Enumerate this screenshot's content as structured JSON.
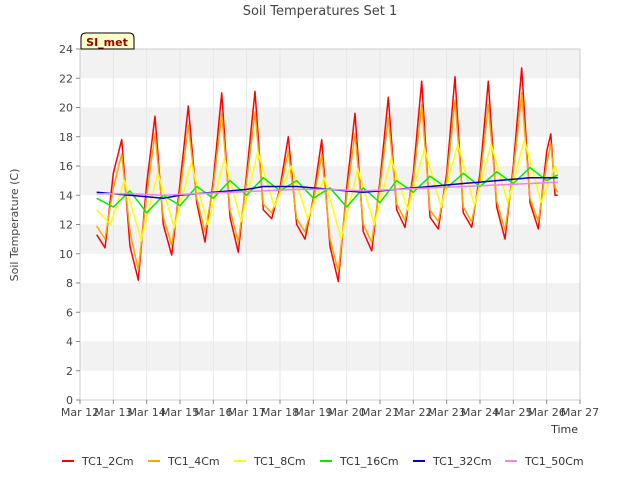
{
  "chart_data": {
    "type": "line",
    "title": "Soil Temperatures Set 1",
    "xlabel": "Time",
    "ylabel": "Soil Temperature (C)",
    "badge": "SI_met",
    "xlim": [
      "2024-03-12",
      "2024-03-27"
    ],
    "ylim": [
      0,
      24
    ],
    "x_ticks": [
      {
        "date": "2024-03-12",
        "label": "Mar 12"
      },
      {
        "date": "2024-03-13",
        "label": "Mar 13"
      },
      {
        "date": "2024-03-14",
        "label": "Mar 14"
      },
      {
        "date": "2024-03-15",
        "label": "Mar 15"
      },
      {
        "date": "2024-03-16",
        "label": "Mar 16"
      },
      {
        "date": "2024-03-17",
        "label": "Mar 17"
      },
      {
        "date": "2024-03-18",
        "label": "Mar 18"
      },
      {
        "date": "2024-03-19",
        "label": "Mar 19"
      },
      {
        "date": "2024-03-20",
        "label": "Mar 20"
      },
      {
        "date": "2024-03-21",
        "label": "Mar 21"
      },
      {
        "date": "2024-03-22",
        "label": "Mar 22"
      },
      {
        "date": "2024-03-23",
        "label": "Mar 23"
      },
      {
        "date": "2024-03-24",
        "label": "Mar 24"
      },
      {
        "date": "2024-03-25",
        "label": "Mar 25"
      },
      {
        "date": "2024-03-26",
        "label": "Mar 26"
      },
      {
        "date": "2024-03-27",
        "label": "Mar 27"
      }
    ],
    "y_ticks": [
      0,
      2,
      4,
      6,
      8,
      10,
      12,
      14,
      16,
      18,
      20,
      22,
      24
    ],
    "grid": "horizontal alternating bands",
    "legend_position": "bottom",
    "series": [
      {
        "name": "TC1_2Cm",
        "color": "#ff0000",
        "points": [
          [
            "2024-03-12 12:00",
            11.3
          ],
          [
            "2024-03-12 18:00",
            10.4
          ],
          [
            "2024-03-13 00:00",
            15.5
          ],
          [
            "2024-03-13 06:00",
            17.8
          ],
          [
            "2024-03-13 12:00",
            10.5
          ],
          [
            "2024-03-13 18:00",
            8.2
          ],
          [
            "2024-03-14 00:00",
            14.8
          ],
          [
            "2024-03-14 06:00",
            19.4
          ],
          [
            "2024-03-14 12:00",
            12.0
          ],
          [
            "2024-03-14 18:00",
            9.9
          ],
          [
            "2024-03-15 00:00",
            14.8
          ],
          [
            "2024-03-15 06:00",
            20.1
          ],
          [
            "2024-03-15 12:00",
            13.5
          ],
          [
            "2024-03-15 18:00",
            10.8
          ],
          [
            "2024-03-16 00:00",
            15.0
          ],
          [
            "2024-03-16 06:00",
            21.0
          ],
          [
            "2024-03-16 12:00",
            12.5
          ],
          [
            "2024-03-16 18:00",
            10.1
          ],
          [
            "2024-03-17 00:00",
            15.5
          ],
          [
            "2024-03-17 06:00",
            21.1
          ],
          [
            "2024-03-17 12:00",
            13.0
          ],
          [
            "2024-03-17 18:00",
            12.4
          ],
          [
            "2024-03-18 00:00",
            14.5
          ],
          [
            "2024-03-18 06:00",
            18.0
          ],
          [
            "2024-03-18 12:00",
            12.0
          ],
          [
            "2024-03-18 18:00",
            11.0
          ],
          [
            "2024-03-19 00:00",
            13.8
          ],
          [
            "2024-03-19 06:00",
            17.8
          ],
          [
            "2024-03-19 12:00",
            10.5
          ],
          [
            "2024-03-19 18:00",
            8.1
          ],
          [
            "2024-03-20 00:00",
            14.5
          ],
          [
            "2024-03-20 06:00",
            19.6
          ],
          [
            "2024-03-20 12:00",
            11.5
          ],
          [
            "2024-03-20 18:00",
            10.2
          ],
          [
            "2024-03-21 00:00",
            15.0
          ],
          [
            "2024-03-21 06:00",
            20.7
          ],
          [
            "2024-03-21 12:00",
            13.0
          ],
          [
            "2024-03-21 18:00",
            11.8
          ],
          [
            "2024-03-22 00:00",
            15.5
          ],
          [
            "2024-03-22 06:00",
            21.8
          ],
          [
            "2024-03-22 12:00",
            12.5
          ],
          [
            "2024-03-22 18:00",
            11.7
          ],
          [
            "2024-03-23 00:00",
            15.5
          ],
          [
            "2024-03-23 06:00",
            22.1
          ],
          [
            "2024-03-23 12:00",
            12.8
          ],
          [
            "2024-03-23 18:00",
            11.8
          ],
          [
            "2024-03-24 00:00",
            15.5
          ],
          [
            "2024-03-24 06:00",
            21.8
          ],
          [
            "2024-03-24 12:00",
            13.2
          ],
          [
            "2024-03-24 18:00",
            11.0
          ],
          [
            "2024-03-25 00:00",
            16.0
          ],
          [
            "2024-03-25 06:00",
            22.7
          ],
          [
            "2024-03-25 12:00",
            13.5
          ],
          [
            "2024-03-25 18:00",
            11.7
          ],
          [
            "2024-03-26 00:00",
            17.0
          ],
          [
            "2024-03-26 03:00",
            18.2
          ],
          [
            "2024-03-26 06:00",
            14.0
          ],
          [
            "2024-03-26 08:00",
            14.0
          ]
        ]
      },
      {
        "name": "TC1_4Cm",
        "color": "#ffa500",
        "points": [
          [
            "2024-03-12 12:00",
            11.9
          ],
          [
            "2024-03-12 18:00",
            11.0
          ],
          [
            "2024-03-13 00:00",
            14.5
          ],
          [
            "2024-03-13 06:00",
            16.8
          ],
          [
            "2024-03-13 12:00",
            11.5
          ],
          [
            "2024-03-13 18:00",
            8.9
          ],
          [
            "2024-03-14 00:00",
            14.0
          ],
          [
            "2024-03-14 06:00",
            18.2
          ],
          [
            "2024-03-14 12:00",
            12.5
          ],
          [
            "2024-03-14 18:00",
            10.6
          ],
          [
            "2024-03-15 00:00",
            14.2
          ],
          [
            "2024-03-15 06:00",
            18.8
          ],
          [
            "2024-03-15 12:00",
            13.8
          ],
          [
            "2024-03-15 18:00",
            11.5
          ],
          [
            "2024-03-16 00:00",
            14.6
          ],
          [
            "2024-03-16 06:00",
            19.6
          ],
          [
            "2024-03-16 12:00",
            13.0
          ],
          [
            "2024-03-16 18:00",
            10.8
          ],
          [
            "2024-03-17 00:00",
            15.0
          ],
          [
            "2024-03-17 06:00",
            19.7
          ],
          [
            "2024-03-17 12:00",
            13.4
          ],
          [
            "2024-03-17 18:00",
            12.8
          ],
          [
            "2024-03-18 00:00",
            14.3
          ],
          [
            "2024-03-18 06:00",
            17.0
          ],
          [
            "2024-03-18 12:00",
            12.4
          ],
          [
            "2024-03-18 18:00",
            11.5
          ],
          [
            "2024-03-19 00:00",
            13.6
          ],
          [
            "2024-03-19 06:00",
            16.8
          ],
          [
            "2024-03-19 12:00",
            11.0
          ],
          [
            "2024-03-19 18:00",
            8.8
          ],
          [
            "2024-03-20 00:00",
            14.0
          ],
          [
            "2024-03-20 06:00",
            18.2
          ],
          [
            "2024-03-20 12:00",
            12.0
          ],
          [
            "2024-03-20 18:00",
            10.8
          ],
          [
            "2024-03-21 00:00",
            14.6
          ],
          [
            "2024-03-21 06:00",
            19.3
          ],
          [
            "2024-03-21 12:00",
            13.4
          ],
          [
            "2024-03-21 18:00",
            12.3
          ],
          [
            "2024-03-22 00:00",
            15.0
          ],
          [
            "2024-03-22 06:00",
            20.2
          ],
          [
            "2024-03-22 12:00",
            13.0
          ],
          [
            "2024-03-22 18:00",
            12.2
          ],
          [
            "2024-03-23 00:00",
            15.0
          ],
          [
            "2024-03-23 06:00",
            20.5
          ],
          [
            "2024-03-23 12:00",
            13.2
          ],
          [
            "2024-03-23 18:00",
            12.2
          ],
          [
            "2024-03-24 00:00",
            15.0
          ],
          [
            "2024-03-24 06:00",
            20.2
          ],
          [
            "2024-03-24 12:00",
            13.6
          ],
          [
            "2024-03-24 18:00",
            11.6
          ],
          [
            "2024-03-25 00:00",
            15.6
          ],
          [
            "2024-03-25 06:00",
            21.0
          ],
          [
            "2024-03-25 12:00",
            13.8
          ],
          [
            "2024-03-25 18:00",
            12.2
          ],
          [
            "2024-03-26 00:00",
            16.2
          ],
          [
            "2024-03-26 03:00",
            17.5
          ],
          [
            "2024-03-26 06:00",
            14.5
          ],
          [
            "2024-03-26 08:00",
            14.2
          ]
        ]
      },
      {
        "name": "TC1_8Cm",
        "color": "#ffff00",
        "points": [
          [
            "2024-03-12 12:00",
            13.0
          ],
          [
            "2024-03-12 22:00",
            12.0
          ],
          [
            "2024-03-13 08:00",
            15.0
          ],
          [
            "2024-03-13 20:00",
            10.9
          ],
          [
            "2024-03-14 08:00",
            15.5
          ],
          [
            "2024-03-14 20:00",
            11.8
          ],
          [
            "2024-03-15 08:00",
            16.2
          ],
          [
            "2024-03-15 20:00",
            12.0
          ],
          [
            "2024-03-16 08:00",
            16.5
          ],
          [
            "2024-03-16 20:00",
            12.2
          ],
          [
            "2024-03-17 08:00",
            17.0
          ],
          [
            "2024-03-17 20:00",
            13.2
          ],
          [
            "2024-03-18 08:00",
            16.0
          ],
          [
            "2024-03-18 20:00",
            12.4
          ],
          [
            "2024-03-19 08:00",
            15.2
          ],
          [
            "2024-03-19 20:00",
            11.0
          ],
          [
            "2024-03-20 08:00",
            15.8
          ],
          [
            "2024-03-20 20:00",
            12.0
          ],
          [
            "2024-03-21 08:00",
            16.5
          ],
          [
            "2024-03-21 20:00",
            13.0
          ],
          [
            "2024-03-22 08:00",
            17.2
          ],
          [
            "2024-03-22 20:00",
            13.2
          ],
          [
            "2024-03-23 08:00",
            17.5
          ],
          [
            "2024-03-23 20:00",
            13.3
          ],
          [
            "2024-03-24 08:00",
            17.5
          ],
          [
            "2024-03-24 20:00",
            13.5
          ],
          [
            "2024-03-25 08:00",
            17.8
          ],
          [
            "2024-03-25 20:00",
            13.5
          ],
          [
            "2024-03-26 06:00",
            16.0
          ],
          [
            "2024-03-26 08:00",
            15.5
          ]
        ]
      },
      {
        "name": "TC1_16Cm",
        "color": "#00ee00",
        "points": [
          [
            "2024-03-12 12:00",
            13.8
          ],
          [
            "2024-03-13 00:00",
            13.2
          ],
          [
            "2024-03-13 12:00",
            14.3
          ],
          [
            "2024-03-14 00:00",
            12.8
          ],
          [
            "2024-03-14 12:00",
            14.0
          ],
          [
            "2024-03-15 00:00",
            13.3
          ],
          [
            "2024-03-15 12:00",
            14.6
          ],
          [
            "2024-03-16 00:00",
            13.8
          ],
          [
            "2024-03-16 12:00",
            15.0
          ],
          [
            "2024-03-17 00:00",
            14.0
          ],
          [
            "2024-03-17 12:00",
            15.2
          ],
          [
            "2024-03-18 00:00",
            14.3
          ],
          [
            "2024-03-18 12:00",
            15.0
          ],
          [
            "2024-03-19 00:00",
            13.8
          ],
          [
            "2024-03-19 12:00",
            14.5
          ],
          [
            "2024-03-20 00:00",
            13.2
          ],
          [
            "2024-03-20 12:00",
            14.5
          ],
          [
            "2024-03-21 00:00",
            13.5
          ],
          [
            "2024-03-21 12:00",
            15.0
          ],
          [
            "2024-03-22 00:00",
            14.2
          ],
          [
            "2024-03-22 12:00",
            15.3
          ],
          [
            "2024-03-23 00:00",
            14.5
          ],
          [
            "2024-03-23 12:00",
            15.5
          ],
          [
            "2024-03-24 00:00",
            14.6
          ],
          [
            "2024-03-24 12:00",
            15.6
          ],
          [
            "2024-03-25 00:00",
            14.8
          ],
          [
            "2024-03-25 12:00",
            15.9
          ],
          [
            "2024-03-26 00:00",
            15.0
          ],
          [
            "2024-03-26 08:00",
            15.4
          ]
        ]
      },
      {
        "name": "TC1_32Cm",
        "color": "#0000cc",
        "points": [
          [
            "2024-03-12 12:00",
            14.2
          ],
          [
            "2024-03-13 00:00",
            14.1
          ],
          [
            "2024-03-13 12:00",
            14.0
          ],
          [
            "2024-03-14 00:00",
            13.9
          ],
          [
            "2024-03-14 12:00",
            13.8
          ],
          [
            "2024-03-15 00:00",
            14.0
          ],
          [
            "2024-03-15 12:00",
            14.1
          ],
          [
            "2024-03-16 00:00",
            14.2
          ],
          [
            "2024-03-16 12:00",
            14.3
          ],
          [
            "2024-03-17 00:00",
            14.4
          ],
          [
            "2024-03-17 12:00",
            14.6
          ],
          [
            "2024-03-18 00:00",
            14.6
          ],
          [
            "2024-03-18 12:00",
            14.6
          ],
          [
            "2024-03-19 00:00",
            14.5
          ],
          [
            "2024-03-19 12:00",
            14.4
          ],
          [
            "2024-03-20 00:00",
            14.3
          ],
          [
            "2024-03-20 12:00",
            14.2
          ],
          [
            "2024-03-21 00:00",
            14.3
          ],
          [
            "2024-03-21 12:00",
            14.4
          ],
          [
            "2024-03-22 00:00",
            14.5
          ],
          [
            "2024-03-22 12:00",
            14.6
          ],
          [
            "2024-03-23 00:00",
            14.7
          ],
          [
            "2024-03-23 12:00",
            14.8
          ],
          [
            "2024-03-24 00:00",
            14.9
          ],
          [
            "2024-03-24 12:00",
            15.0
          ],
          [
            "2024-03-25 00:00",
            15.1
          ],
          [
            "2024-03-25 12:00",
            15.2
          ],
          [
            "2024-03-26 00:00",
            15.2
          ],
          [
            "2024-03-26 08:00",
            15.2
          ]
        ]
      },
      {
        "name": "TC1_50Cm",
        "color": "#ee82ee",
        "points": [
          [
            "2024-03-12 12:00",
            14.1
          ],
          [
            "2024-03-13 12:00",
            14.1
          ],
          [
            "2024-03-14 12:00",
            14.0
          ],
          [
            "2024-03-15 12:00",
            14.1
          ],
          [
            "2024-03-16 12:00",
            14.2
          ],
          [
            "2024-03-17 12:00",
            14.3
          ],
          [
            "2024-03-18 12:00",
            14.4
          ],
          [
            "2024-03-19 12:00",
            14.4
          ],
          [
            "2024-03-20 12:00",
            14.3
          ],
          [
            "2024-03-21 12:00",
            14.4
          ],
          [
            "2024-03-22 12:00",
            14.5
          ],
          [
            "2024-03-23 12:00",
            14.6
          ],
          [
            "2024-03-24 12:00",
            14.7
          ],
          [
            "2024-03-25 12:00",
            14.8
          ],
          [
            "2024-03-26 08:00",
            14.9
          ]
        ]
      }
    ]
  }
}
